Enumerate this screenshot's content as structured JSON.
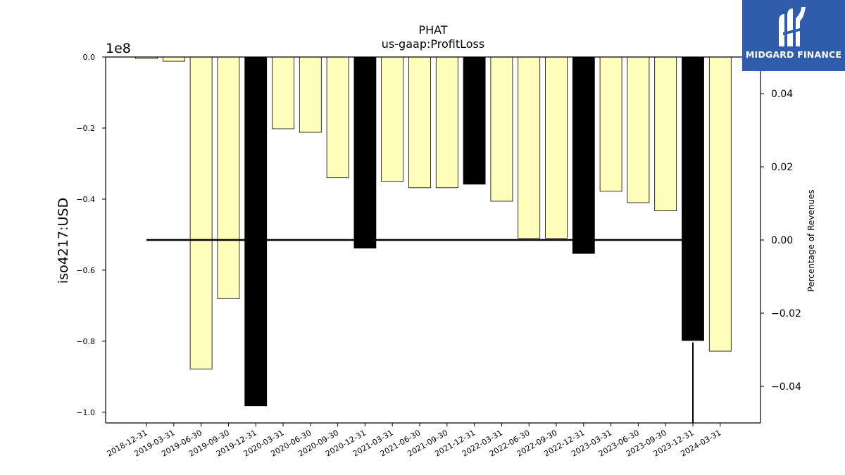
{
  "brand": {
    "name": "MIDGARD FINANCE",
    "color": "#2f5dab"
  },
  "chart_data": {
    "type": "bar",
    "title": "PHAT",
    "subtitle": "us-gaap:ProfitLoss",
    "ylabel": "iso4217:USD",
    "y2label": "Percentage of Revenues",
    "offset_label": "1e8",
    "ylim": [
      -1.03,
      0
    ],
    "y2lim": [
      -0.05,
      0.05
    ],
    "yticks": [
      0.0,
      -0.2,
      -0.4,
      -0.6,
      -0.8,
      -1.0
    ],
    "ytick_labels": [
      "0.0",
      "−0.2",
      "−0.4",
      "−0.6",
      "−0.8",
      "−1.0"
    ],
    "y2ticks": [
      0.04,
      0.02,
      0.0,
      -0.02,
      -0.04
    ],
    "y2tick_labels": [
      "0.04",
      "0.02",
      "0.00",
      "−0.02",
      "−0.04"
    ],
    "categories": [
      "2018-12-31",
      "2019-03-31",
      "2019-06-30",
      "2019-09-30",
      "2019-12-31",
      "2020-03-31",
      "2020-06-30",
      "2020-09-30",
      "2020-12-31",
      "2021-03-31",
      "2021-06-30",
      "2021-09-30",
      "2021-12-31",
      "2022-03-31",
      "2022-06-30",
      "2022-09-30",
      "2022-12-31",
      "2023-03-31",
      "2023-06-30",
      "2023-09-30",
      "2023-12-31",
      "2024-03-31"
    ],
    "values": [
      -0.004,
      -0.012,
      -0.878,
      -0.68,
      -0.982,
      -0.202,
      -0.212,
      -0.34,
      -0.538,
      -0.35,
      -0.368,
      -0.368,
      -0.358,
      -0.406,
      -0.51,
      -0.51,
      -0.553,
      -0.378,
      -0.41,
      -0.433,
      -0.798,
      -0.828
    ],
    "annual": [
      false,
      false,
      false,
      false,
      true,
      false,
      false,
      false,
      true,
      false,
      false,
      false,
      true,
      false,
      false,
      false,
      true,
      false,
      false,
      false,
      true,
      false
    ],
    "colors": {
      "quarter": "#ffffbb",
      "annual": "#000000",
      "edge": "#000000"
    },
    "percentage_line": {
      "from_index": 0,
      "to_index": 20,
      "value": 0.0
    },
    "vertical_line": {
      "index": 20,
      "from": -0.028,
      "to": -0.05
    },
    "grid": false,
    "legend": "none"
  }
}
